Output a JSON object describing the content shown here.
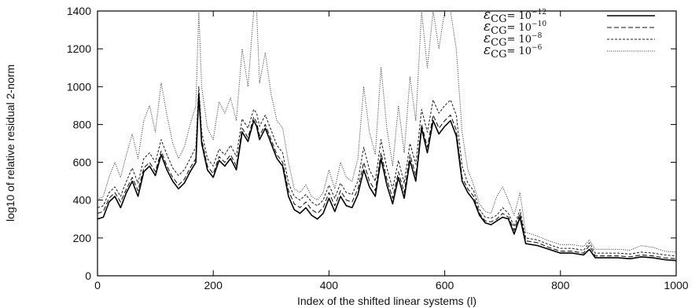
{
  "chart_data": {
    "type": "line",
    "title": "",
    "xlabel": "Index of the shifted linear systems (l)",
    "ylabel": "log10 of relative residual 2-norm",
    "xlim": [
      0,
      1000
    ],
    "ylim": [
      0,
      1400
    ],
    "xticks": [
      "0",
      "200",
      "400",
      "600",
      "800",
      "1000"
    ],
    "yticks": [
      "0",
      "200",
      "400",
      "600",
      "800",
      "1000",
      "1200",
      "1400"
    ],
    "grid": false,
    "legend_position": "top-right",
    "x": [
      0,
      10,
      20,
      30,
      40,
      50,
      60,
      70,
      80,
      90,
      100,
      110,
      120,
      130,
      140,
      150,
      160,
      170,
      175,
      180,
      190,
      200,
      210,
      220,
      230,
      240,
      250,
      260,
      270,
      275,
      280,
      290,
      300,
      310,
      320,
      330,
      340,
      350,
      360,
      370,
      380,
      390,
      400,
      410,
      420,
      430,
      440,
      450,
      460,
      470,
      480,
      490,
      500,
      510,
      520,
      530,
      540,
      550,
      560,
      570,
      580,
      590,
      600,
      610,
      620,
      630,
      640,
      650,
      660,
      670,
      680,
      690,
      700,
      710,
      720,
      730,
      740,
      760,
      780,
      800,
      820,
      840,
      850,
      860,
      880,
      900,
      920,
      940,
      960,
      980,
      1000
    ],
    "series": [
      {
        "name": "10^-12",
        "legend_base": "ε",
        "legend_sub": "CG",
        "legend_eq": "= 10",
        "legend_exp": "−12",
        "style": "solid",
        "color": "#000000",
        "values": [
          300,
          310,
          390,
          420,
          360,
          440,
          500,
          420,
          550,
          580,
          530,
          640,
          560,
          500,
          460,
          490,
          550,
          600,
          960,
          700,
          560,
          520,
          610,
          580,
          620,
          560,
          760,
          710,
          820,
          790,
          720,
          780,
          700,
          620,
          580,
          420,
          350,
          330,
          360,
          320,
          300,
          330,
          410,
          340,
          420,
          370,
          360,
          430,
          560,
          470,
          420,
          620,
          480,
          380,
          520,
          410,
          610,
          500,
          780,
          650,
          820,
          750,
          790,
          820,
          740,
          500,
          440,
          400,
          320,
          280,
          270,
          290,
          310,
          300,
          220,
          310,
          170,
          160,
          140,
          120,
          120,
          110,
          140,
          95,
          95,
          95,
          90,
          100,
          95,
          85,
          80
        ]
      },
      {
        "name": "10^-10",
        "legend_base": "ε",
        "legend_sub": "CG",
        "legend_eq": "= 10",
        "legend_exp": "−10",
        "style": "dashed",
        "color": "#111111",
        "values": [
          330,
          340,
          410,
          440,
          390,
          460,
          520,
          450,
          570,
          600,
          550,
          660,
          580,
          520,
          480,
          510,
          570,
          620,
          970,
          720,
          580,
          540,
          630,
          600,
          640,
          580,
          780,
          730,
          840,
          810,
          740,
          800,
          720,
          640,
          600,
          450,
          380,
          360,
          390,
          350,
          330,
          360,
          440,
          370,
          450,
          400,
          390,
          460,
          600,
          500,
          450,
          650,
          510,
          410,
          550,
          440,
          640,
          530,
          800,
          680,
          850,
          780,
          820,
          850,
          770,
          520,
          460,
          420,
          330,
          290,
          285,
          300,
          330,
          310,
          240,
          330,
          185,
          175,
          150,
          130,
          130,
          120,
          160,
          105,
          105,
          105,
          100,
          110,
          105,
          95,
          90
        ]
      },
      {
        "name": "10^-8",
        "legend_base": "ε",
        "legend_sub": "CG",
        "legend_eq": "= 10",
        "legend_exp": "−8",
        "style": "short-dash",
        "color": "#222222",
        "values": [
          360,
          370,
          440,
          470,
          420,
          500,
          570,
          490,
          620,
          650,
          600,
          720,
          640,
          570,
          530,
          560,
          620,
          680,
          1000,
          760,
          620,
          580,
          670,
          640,
          690,
          630,
          830,
          780,
          880,
          860,
          790,
          850,
          770,
          690,
          650,
          490,
          420,
          400,
          430,
          390,
          370,
          400,
          480,
          410,
          490,
          440,
          430,
          500,
          680,
          560,
          500,
          720,
          570,
          460,
          610,
          490,
          700,
          590,
          880,
          760,
          930,
          860,
          900,
          930,
          850,
          580,
          490,
          450,
          350,
          310,
          305,
          320,
          360,
          330,
          260,
          350,
          200,
          190,
          165,
          145,
          145,
          135,
          175,
          120,
          120,
          120,
          115,
          125,
          120,
          110,
          105
        ]
      },
      {
        "name": "10^-6",
        "legend_base": "ε",
        "legend_sub": "CG",
        "legend_eq": "= 10",
        "legend_exp": "−6",
        "style": "dotted",
        "color": "#333333",
        "values": [
          400,
          420,
          520,
          600,
          520,
          640,
          750,
          620,
          820,
          900,
          760,
          1020,
          850,
          700,
          620,
          680,
          800,
          900,
          1400,
          1000,
          780,
          720,
          920,
          860,
          940,
          820,
          1200,
          1000,
          1400,
          1400,
          1020,
          1180,
          960,
          820,
          780,
          600,
          460,
          440,
          480,
          420,
          400,
          440,
          560,
          460,
          600,
          520,
          500,
          620,
          1000,
          760,
          640,
          1100,
          780,
          580,
          900,
          650,
          1050,
          820,
          1400,
          1100,
          1400,
          1200,
          1400,
          1400,
          1200,
          760,
          560,
          480,
          380,
          340,
          330,
          420,
          470,
          400,
          320,
          440,
          230,
          210,
          185,
          165,
          165,
          155,
          190,
          140,
          140,
          140,
          135,
          160,
          150,
          130,
          125
        ]
      }
    ]
  }
}
